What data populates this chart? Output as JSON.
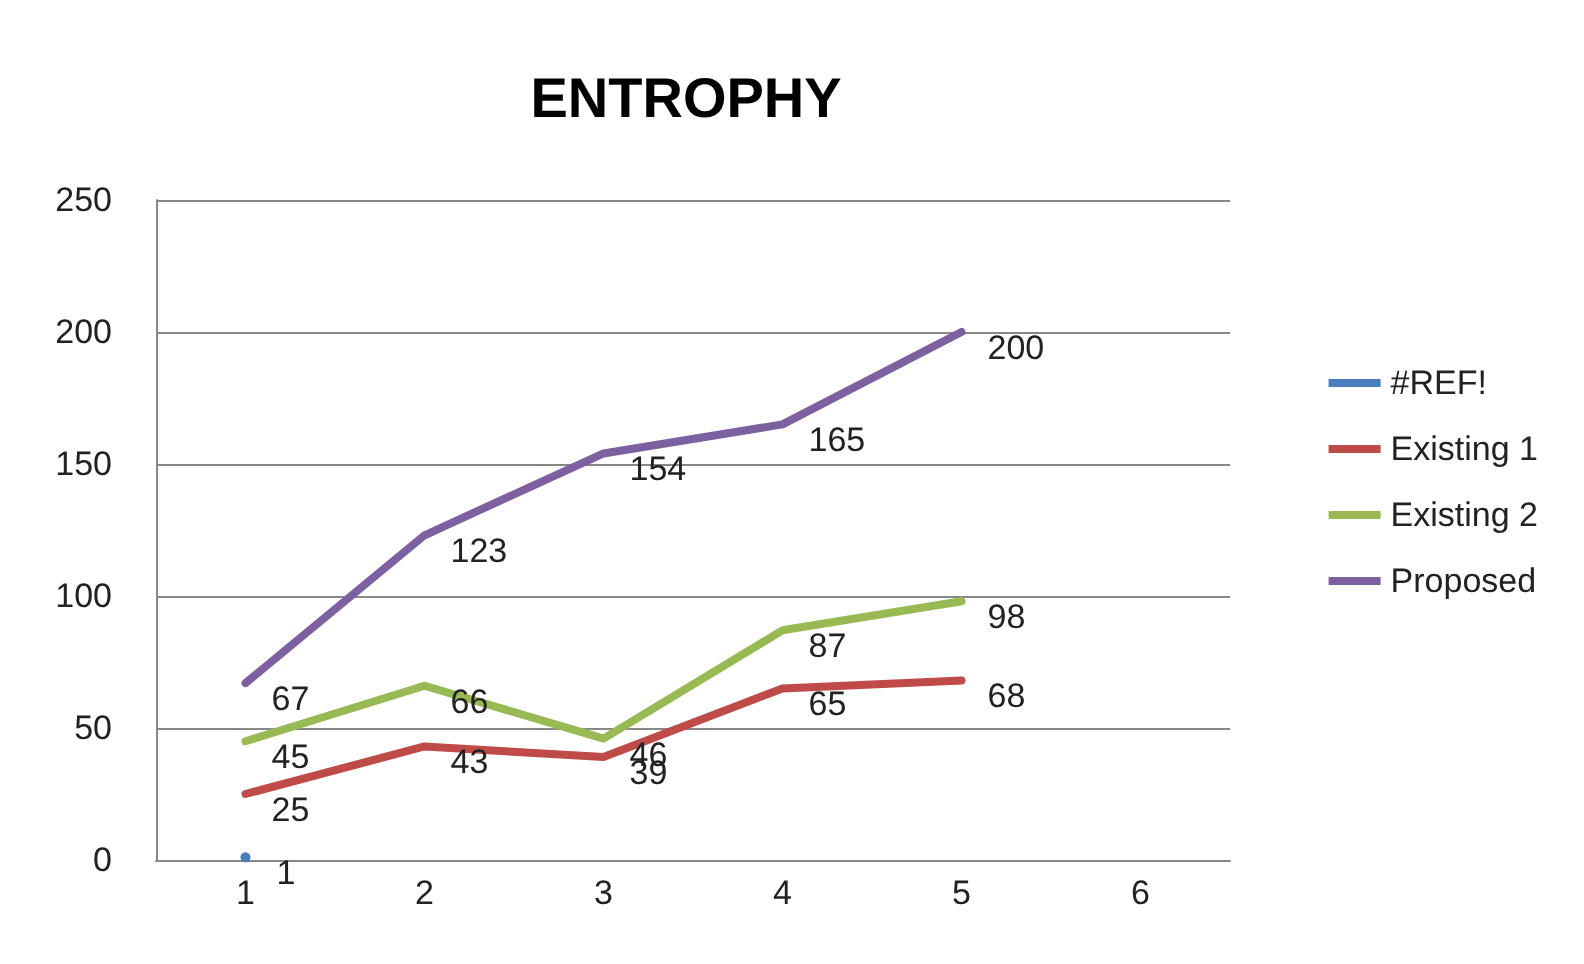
{
  "chart_data": {
    "type": "line",
    "title": "ENTROPHY",
    "categories": [
      "1",
      "2",
      "3",
      "4",
      "5",
      "6"
    ],
    "series": [
      {
        "name": "#REF!",
        "color": "#4a7ebb",
        "marker": "circle",
        "values": [
          1,
          null,
          null,
          null,
          null,
          null
        ]
      },
      {
        "name": "Existing 1",
        "color": "#be4b48",
        "values": [
          25,
          43,
          39,
          65,
          68,
          null
        ]
      },
      {
        "name": "Existing 2",
        "color": "#98b954",
        "values": [
          45,
          66,
          46,
          87,
          98,
          null
        ]
      },
      {
        "name": "Proposed",
        "color": "#7d60a0",
        "values": [
          67,
          123,
          154,
          165,
          200,
          null
        ]
      }
    ],
    "ylim": [
      0,
      250
    ],
    "yticks": [
      0,
      50,
      100,
      150,
      200,
      250
    ],
    "grid": "y",
    "legend": "right",
    "data_labels": true,
    "marker": "none",
    "line_style": "solid"
  }
}
